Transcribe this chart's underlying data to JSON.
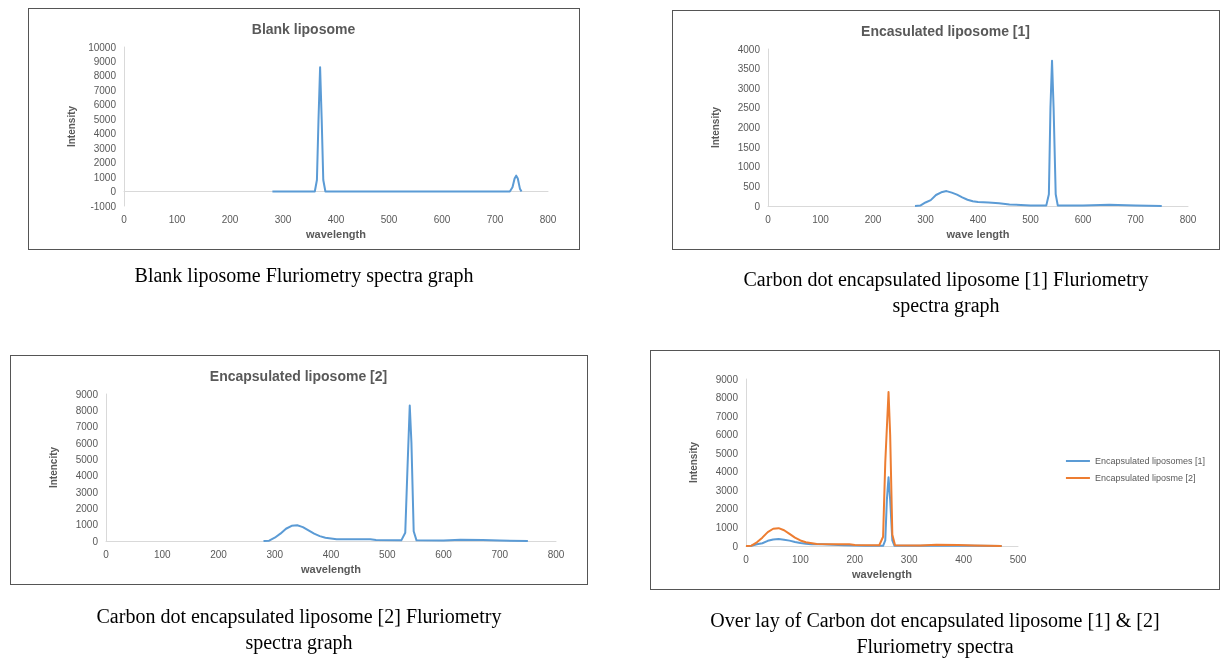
{
  "chart_data": [
    {
      "type": "line",
      "title": "Blank liposome",
      "xlabel": "wavelength",
      "ylabel": "Intensity",
      "xlim": [
        0,
        800
      ],
      "xticks": [
        0,
        100,
        200,
        300,
        400,
        500,
        600,
        700,
        800
      ],
      "ylim": [
        -1000,
        10000
      ],
      "yticks": [
        -1000,
        0,
        1000,
        2000,
        3000,
        4000,
        5000,
        6000,
        7000,
        8000,
        9000,
        10000
      ],
      "annotations": [
        "Blank liposome Fluriometry spectra graph"
      ],
      "series": [
        {
          "color": "#5b9bd5",
          "x": [
            280,
            360,
            364,
            367,
            370,
            373,
            376,
            380,
            728,
            733,
            737,
            740,
            743,
            747,
            750
          ],
          "values": [
            0,
            0,
            800,
            5000,
            8600,
            5000,
            800,
            0,
            0,
            300,
            900,
            1100,
            900,
            200,
            0
          ]
        }
      ]
    },
    {
      "type": "line",
      "title": "Encasulated liposome [1]",
      "xlabel": "wave length",
      "ylabel": "Intensity",
      "xlim": [
        0,
        800
      ],
      "xticks": [
        0,
        100,
        200,
        300,
        400,
        500,
        600,
        700,
        800
      ],
      "ylim": [
        0,
        4000
      ],
      "yticks": [
        0,
        500,
        1000,
        1500,
        2000,
        2500,
        3000,
        3500,
        4000
      ],
      "annotations": [
        "Carbon dot encapsulated liposome [1] Fluriometry spectra graph"
      ],
      "series": [
        {
          "color": "#5b9bd5",
          "x": [
            280,
            290,
            300,
            310,
            320,
            330,
            340,
            350,
            360,
            370,
            380,
            390,
            400,
            420,
            440,
            460,
            500,
            530,
            535,
            538,
            541,
            544,
            548,
            552,
            600,
            650,
            700,
            750
          ],
          "values": [
            0,
            10,
            90,
            150,
            280,
            350,
            380,
            340,
            290,
            220,
            160,
            120,
            100,
            90,
            70,
            40,
            15,
            10,
            300,
            2500,
            3700,
            2500,
            300,
            10,
            10,
            30,
            15,
            0
          ]
        }
      ]
    },
    {
      "type": "line",
      "title": "Encapsulated liposome [2]",
      "xlabel": "wavelength",
      "ylabel": "Intencity",
      "xlim": [
        0,
        800
      ],
      "xticks": [
        0,
        100,
        200,
        300,
        400,
        500,
        600,
        700,
        800
      ],
      "ylim": [
        0,
        9000
      ],
      "yticks": [
        0,
        1000,
        2000,
        3000,
        4000,
        5000,
        6000,
        7000,
        8000,
        9000
      ],
      "annotations": [
        "Carbon dot encapsulated liposome [2] Fluriometry spectra graph"
      ],
      "series": [
        {
          "color": "#5b9bd5",
          "x": [
            280,
            290,
            300,
            310,
            320,
            330,
            340,
            350,
            360,
            370,
            380,
            390,
            410,
            450,
            470,
            480,
            525,
            532,
            536,
            540,
            543,
            547,
            552,
            600,
            630,
            670,
            700,
            750
          ],
          "values": [
            0,
            20,
            200,
            450,
            750,
            930,
            960,
            850,
            650,
            450,
            300,
            200,
            110,
            100,
            100,
            60,
            40,
            500,
            4500,
            8300,
            6000,
            600,
            40,
            30,
            70,
            60,
            30,
            0
          ]
        }
      ]
    },
    {
      "type": "line",
      "xlabel": "wavelength",
      "ylabel": "Intensity",
      "xlim": [
        0,
        500
      ],
      "xticks": [
        0,
        100,
        200,
        300,
        400,
        500
      ],
      "ylim": [
        0,
        9000
      ],
      "yticks": [
        0,
        1000,
        2000,
        3000,
        4000,
        5000,
        6000,
        7000,
        8000,
        9000
      ],
      "legend": "right",
      "annotations": [
        "Over lay of Carbon dot encapsulated liposome [1] & [2] Fluriometry spectra"
      ],
      "series": [
        {
          "name": "Encapsulated liposomes [1]",
          "color": "#5b9bd5",
          "x": [
            0,
            10,
            20,
            30,
            40,
            50,
            60,
            70,
            80,
            90,
            100,
            110,
            120,
            140,
            160,
            180,
            220,
            252,
            256,
            259,
            262,
            265,
            269,
            273,
            320,
            370,
            420,
            470
          ],
          "values": [
            0,
            10,
            90,
            150,
            280,
            350,
            380,
            340,
            290,
            220,
            160,
            120,
            100,
            90,
            70,
            40,
            15,
            10,
            300,
            2500,
            3700,
            2500,
            300,
            10,
            10,
            30,
            15,
            0
          ]
        },
        {
          "name": "Encapsulated liposme [2]",
          "color": "#ed7d31",
          "x": [
            0,
            10,
            20,
            30,
            40,
            50,
            60,
            70,
            80,
            90,
            100,
            110,
            130,
            170,
            190,
            200,
            245,
            252,
            256,
            262,
            265,
            269,
            274,
            320,
            350,
            390,
            420,
            470
          ],
          "values": [
            0,
            20,
            200,
            450,
            750,
            930,
            960,
            850,
            650,
            450,
            300,
            200,
            110,
            100,
            100,
            60,
            40,
            500,
            4500,
            8300,
            6000,
            600,
            40,
            30,
            70,
            60,
            30,
            0
          ]
        }
      ]
    }
  ]
}
